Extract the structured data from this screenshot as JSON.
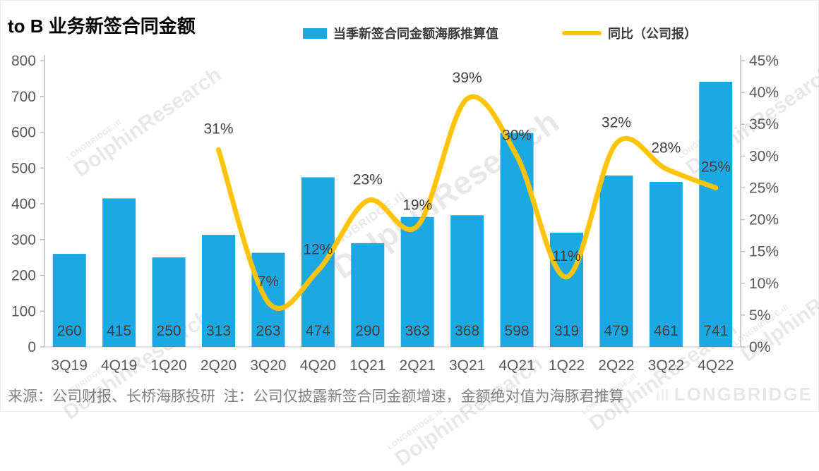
{
  "title": "to B 业务新签合同金额",
  "legend": [
    {
      "label": "当季新签合同金额海豚推算值",
      "color": "#1BA8E3"
    },
    {
      "label": "同比（公司报）",
      "color": "#FFC408"
    }
  ],
  "chart_data": {
    "type": "bar+line",
    "categories": [
      "3Q19",
      "4Q19",
      "1Q20",
      "2Q20",
      "3Q20",
      "4Q20",
      "1Q21",
      "2Q21",
      "3Q21",
      "4Q21",
      "1Q22",
      "2Q22",
      "3Q22",
      "4Q22"
    ],
    "series": [
      {
        "name": "当季新签合同金额海豚推算值",
        "type": "bar",
        "axis": "left",
        "color": "#1BA8E3",
        "values": [
          260,
          415,
          250,
          313,
          263,
          474,
          290,
          363,
          368,
          598,
          319,
          479,
          461,
          741
        ]
      },
      {
        "name": "同比（公司报）",
        "type": "line",
        "axis": "right",
        "color": "#FFC408",
        "values": [
          null,
          null,
          null,
          31,
          7,
          12,
          23,
          19,
          39,
          30,
          11,
          32,
          28,
          25
        ],
        "labels": [
          null,
          null,
          null,
          "31%",
          "7%",
          "12%",
          "23%",
          "19%",
          "39%",
          "30%",
          "11%",
          "32%",
          "28%",
          "25%"
        ]
      }
    ],
    "left_axis": {
      "min": 0,
      "max": 800,
      "step": 100,
      "ticks": [
        "800",
        "700",
        "600",
        "500",
        "400",
        "300",
        "200",
        "100",
        "0"
      ]
    },
    "right_axis": {
      "min": 0,
      "max": 45,
      "step": 5,
      "ticks": [
        "45%",
        "40%",
        "35%",
        "30%",
        "25%",
        "20%",
        "15%",
        "10%",
        "5%",
        "0%"
      ]
    },
    "grid": false,
    "legend_position": "top",
    "value_label_color": "#404040",
    "axis_label_color": "#595959"
  },
  "footer": {
    "source": "来源：公司财报、长桥海豚投研  注：公司仅披露新签合同金额增速，金额绝对值为海豚君推算",
    "brand": "LONGBRIDGE",
    "brand_icon": "ıll"
  },
  "watermark": {
    "line1": "LONGBRIDGE.ıll",
    "line2": "DolphinResearch"
  }
}
